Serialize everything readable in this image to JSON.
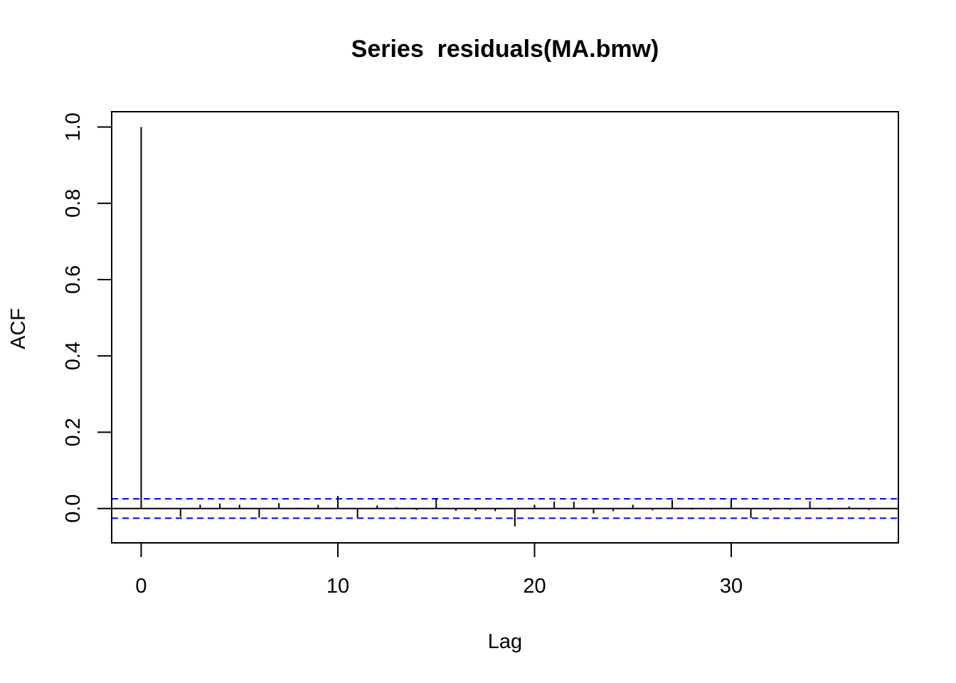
{
  "chart_data": {
    "type": "bar",
    "subtype": "acf",
    "title": "Series  residuals(MA.bmw)",
    "xlabel": "Lag",
    "ylabel": "ACF",
    "xlim": [
      -1.5,
      38.5
    ],
    "ylim": [
      -0.09,
      1.04
    ],
    "x_ticks": [
      0,
      10,
      20,
      30
    ],
    "x_tick_labels": [
      "0",
      "10",
      "20",
      "30"
    ],
    "y_ticks": [
      0.0,
      0.2,
      0.4,
      0.6,
      0.8,
      1.0
    ],
    "y_tick_labels": [
      "0.0",
      "0.2",
      "0.4",
      "0.6",
      "0.8",
      "1.0"
    ],
    "grid": false,
    "lags": [
      0,
      1,
      2,
      3,
      4,
      5,
      6,
      7,
      8,
      9,
      10,
      11,
      12,
      13,
      14,
      15,
      16,
      17,
      18,
      19,
      20,
      21,
      22,
      23,
      24,
      25,
      26,
      27,
      28,
      29,
      30,
      31,
      32,
      33,
      34,
      35,
      36,
      37
    ],
    "values": [
      1.0,
      -0.002,
      -0.022,
      0.01,
      0.013,
      0.01,
      -0.024,
      0.014,
      0.002,
      0.01,
      0.033,
      -0.024,
      0.008,
      0.003,
      -0.004,
      0.027,
      -0.006,
      -0.006,
      -0.007,
      -0.047,
      0.01,
      0.018,
      0.018,
      -0.013,
      -0.007,
      0.01,
      -0.005,
      0.022,
      -0.003,
      -0.003,
      0.025,
      -0.025,
      -0.005,
      -0.004,
      0.019,
      -0.003,
      0.005,
      -0.004
    ],
    "confidence_limit": 0.0254,
    "colors": {
      "bars": "#000000",
      "zero_line": "#000000",
      "confidence_lines": "#0000ff",
      "box": "#000000"
    }
  }
}
